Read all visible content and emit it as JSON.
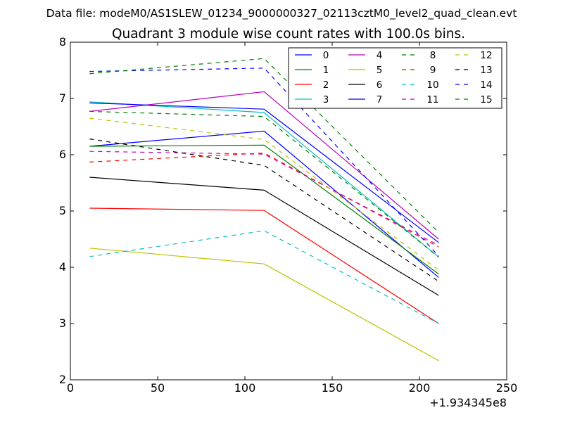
{
  "suptitle": "Data file: modeM0/AS1SLEW_01234_9000000327_02113cztM0_level2_quad_clean.evt",
  "chart_data": {
    "type": "line",
    "title": "Quadrant 3 module wise count rates with 100.0s bins.",
    "xlabel": "",
    "ylabel": "",
    "x_offset_label": "+1.934345e8",
    "xlim": [
      0,
      250
    ],
    "ylim": [
      2,
      8
    ],
    "x_ticks": [
      0,
      50,
      100,
      150,
      200,
      250
    ],
    "y_ticks": [
      2,
      3,
      4,
      5,
      6,
      7,
      8
    ],
    "x": [
      11,
      111,
      211
    ],
    "legend_position": "top-right",
    "legend_columns": 4,
    "series": [
      {
        "name": "0",
        "values": [
          6.15,
          6.42,
          3.82
        ],
        "color": "#0000ff",
        "dash": "solid"
      },
      {
        "name": "1",
        "values": [
          6.15,
          6.17,
          3.88
        ],
        "color": "#008000",
        "dash": "solid"
      },
      {
        "name": "2",
        "values": [
          5.05,
          5.01,
          3.0
        ],
        "color": "#ff0000",
        "dash": "solid"
      },
      {
        "name": "3",
        "values": [
          6.94,
          6.75,
          4.18
        ],
        "color": "#00bfbf",
        "dash": "solid"
      },
      {
        "name": "4",
        "values": [
          6.77,
          7.12,
          4.5
        ],
        "color": "#bf00bf",
        "dash": "solid"
      },
      {
        "name": "5",
        "values": [
          4.34,
          4.06,
          2.34
        ],
        "color": "#bfbf00",
        "dash": "solid"
      },
      {
        "name": "6",
        "values": [
          5.6,
          5.37,
          3.5
        ],
        "color": "#000000",
        "dash": "solid"
      },
      {
        "name": "7",
        "values": [
          6.92,
          6.81,
          4.44
        ],
        "color": "#0000ff",
        "dash": "solid"
      },
      {
        "name": "8",
        "values": [
          6.77,
          6.68,
          4.18
        ],
        "color": "#008000",
        "dash": "dashed"
      },
      {
        "name": "9",
        "values": [
          5.87,
          6.03,
          4.36
        ],
        "color": "#ff0000",
        "dash": "dashed"
      },
      {
        "name": "10",
        "values": [
          4.19,
          4.65,
          3.0
        ],
        "color": "#00bfbf",
        "dash": "dashed"
      },
      {
        "name": "11",
        "values": [
          6.06,
          6.01,
          4.39
        ],
        "color": "#bf00bf",
        "dash": "dashed"
      },
      {
        "name": "12",
        "values": [
          6.65,
          6.27,
          3.95
        ],
        "color": "#bfbf00",
        "dash": "dashed"
      },
      {
        "name": "13",
        "values": [
          6.28,
          5.81,
          3.75
        ],
        "color": "#000000",
        "dash": "dashed"
      },
      {
        "name": "14",
        "values": [
          7.48,
          7.54,
          4.2
        ],
        "color": "#0000ff",
        "dash": "dashed"
      },
      {
        "name": "15",
        "values": [
          7.44,
          7.71,
          4.62
        ],
        "color": "#008000",
        "dash": "dashed"
      }
    ]
  }
}
